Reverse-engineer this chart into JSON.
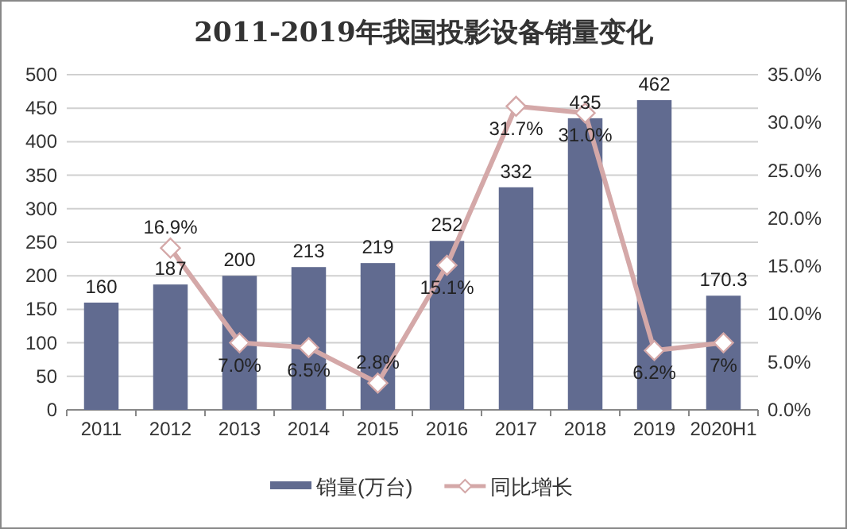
{
  "chart_data": {
    "type": "bar",
    "title": "2011-2019年我国投影设备销量变化",
    "categories": [
      "2011",
      "2012",
      "2013",
      "2014",
      "2015",
      "2016",
      "2017",
      "2018",
      "2019",
      "2020H1"
    ],
    "series": [
      {
        "name": "销量(万台)",
        "color": "#616b90",
        "values": [
          160,
          187,
          200,
          213,
          219,
          252,
          332,
          435,
          462,
          170.3
        ],
        "value_labels": [
          "160",
          "187",
          "200",
          "213",
          "219",
          "252",
          "332",
          "435",
          "462",
          "170.3"
        ]
      },
      {
        "name": "同比增长",
        "type": "line",
        "axis": "y2",
        "color": "#d4a8a8",
        "marker": "diamond",
        "values": [
          null,
          16.9,
          7.0,
          6.5,
          2.8,
          15.1,
          31.7,
          31.0,
          6.2,
          7
        ],
        "value_labels": [
          null,
          "16.9%",
          "7.0%",
          "6.5%",
          "2.8%",
          "15.1%",
          "31.7%",
          "31.0%",
          "6.2%",
          "7%"
        ]
      }
    ],
    "ylim": [
      0,
      500
    ],
    "yticks": [
      0,
      50,
      100,
      150,
      200,
      250,
      300,
      350,
      400,
      450,
      500
    ],
    "y2lim": [
      0,
      35
    ],
    "y2ticks": [
      {
        "value": 0,
        "label": "0.0%"
      },
      {
        "value": 5,
        "label": "5.0%"
      },
      {
        "value": 10,
        "label": "10.0%"
      },
      {
        "value": 15,
        "label": "15.0%"
      },
      {
        "value": 20,
        "label": "20.0%"
      },
      {
        "value": 25,
        "label": "25.0%"
      },
      {
        "value": 30,
        "label": "30.0%"
      },
      {
        "value": 35,
        "label": "35.0%"
      }
    ],
    "grid": "y",
    "legend": "bottom"
  }
}
